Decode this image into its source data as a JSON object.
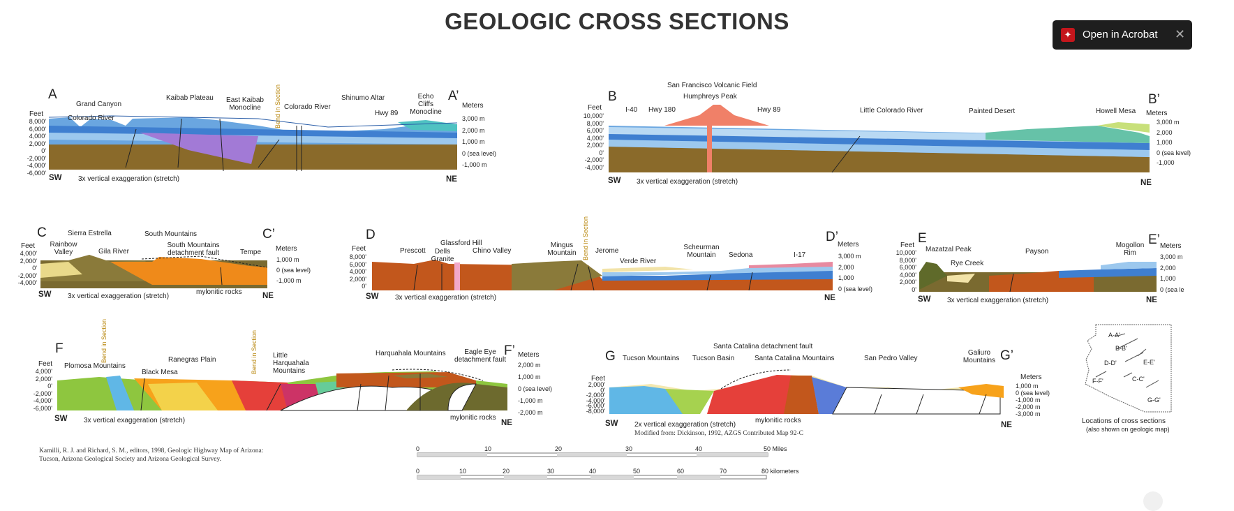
{
  "title": "GEOLOGIC CROSS SECTIONS",
  "acrobat": {
    "label": "Open in Acrobat",
    "icon": "acrobat-icon",
    "close_icon": "close-icon"
  },
  "exaggeration_3x": "3x vertical exaggeration (stretch)",
  "exaggeration_2x": "2x vertical exaggeration (stretch)",
  "bend": "Bend in Section",
  "feet": "Feet",
  "meters": "Meters",
  "sw": "SW",
  "ne": "NE",
  "secA": {
    "start": "A",
    "end": "A’",
    "labels": {
      "colorado_river_1": "Colorado River",
      "grand_canyon": "Grand Canyon",
      "kaibab_plateau": "Kaibab Plateau",
      "east_kaibab": "East Kaibab\nMonocline",
      "colorado_river_2": "Colorado River",
      "shinumo": "Shinumo Altar",
      "hwy89": "Hwy 89",
      "echo_cliffs": "Echo\nCliffs\nMonocline"
    },
    "feet_ticks": [
      "8,000'",
      "6,000'",
      "4,000'",
      "2,000'",
      "0'",
      "-2,000'",
      "-4,000'",
      "-6,000'"
    ],
    "meter_ticks": [
      "3,000 m",
      "2,000 m",
      "1,000 m",
      "0 (sea level)",
      "-1,000 m"
    ]
  },
  "secB": {
    "start": "B",
    "end": "B’",
    "labels": {
      "sfvf": "San Francisco Volcanic Field",
      "humphreys": "Humphreys Peak",
      "i40": "I-40",
      "hwy180": "Hwy 180",
      "hwy89": "Hwy 89",
      "lcr": "Little Colorado River",
      "painted": "Painted Desert",
      "howell": "Howell Mesa"
    },
    "feet_ticks": [
      "10,000'",
      "8,000'",
      "6,000'",
      "4,000'",
      "2,000'",
      "0'",
      "-2,000'",
      "-4,000'"
    ],
    "meter_ticks": [
      "3,000 m",
      "2,000",
      "1,000",
      "0 (sea level)",
      "-1,000"
    ]
  },
  "secC": {
    "start": "C",
    "end": "C’",
    "labels": {
      "sierra": "Sierra Estrella",
      "rainbow": "Rainbow\nValley",
      "gila": "Gila River",
      "south_mtns": "South Mountains",
      "detachment": "South Mountains\ndetachment fault",
      "tempe": "Tempe",
      "mylonitic": "mylonitic rocks"
    },
    "feet_ticks": [
      "4,000'",
      "2,000'",
      "0'",
      "-2,000'",
      "-4,000'"
    ],
    "meter_ticks": [
      "1,000 m",
      "0 (sea level)",
      "-1,000 m"
    ]
  },
  "secD": {
    "start": "D",
    "end": "D’",
    "labels": {
      "glassford": "Glassford Hill",
      "prescott": "Prescott",
      "dells": "Dells\nGranite",
      "chino": "Chino Valley",
      "mingus": "Mingus\nMountain",
      "jerome": "Jerome",
      "verde": "Verde River",
      "scheurman": "Scheurman\nMountain",
      "sedona": "Sedona",
      "i17": "I-17"
    },
    "feet_ticks": [
      "8,000'",
      "6,000'",
      "4,000'",
      "2,000'",
      "0'"
    ],
    "meter_ticks": [
      "3,000 m",
      "2,000",
      "1,000",
      "0 (sea level)"
    ]
  },
  "secE": {
    "start": "E",
    "end": "E’",
    "labels": {
      "mazatzal": "Mazatzal Peak",
      "rye": "Rye Creek",
      "payson": "Payson",
      "mogollon": "Mogollon\nRim"
    },
    "feet_ticks": [
      "10,000'",
      "8,000'",
      "6,000'",
      "4,000'",
      "2,000'",
      "0'"
    ],
    "meter_ticks": [
      "3,000 m",
      "2,000",
      "1,000",
      "0 (sea le"
    ]
  },
  "secF": {
    "start": "F",
    "end": "F’",
    "labels": {
      "plomosa": "Plomosa Mountains",
      "black_mesa": "Black Mesa",
      "ranegras": "Ranegras Plain",
      "little_harq": "Little\nHarquahala\nMountains",
      "harquahala": "Harquahala Mountains",
      "eagle_eye": "Eagle Eye\ndetachment fault",
      "mylonitic": "mylonitic rocks"
    },
    "feet_ticks": [
      "4,000'",
      "2,000'",
      "0'",
      "-2,000'",
      "-4,000'",
      "-6,000'"
    ],
    "meter_ticks": [
      "2,000 m",
      "1,000 m",
      "0 (sea level)",
      "-1,000 m",
      "-2,000 m"
    ]
  },
  "secG": {
    "start": "G",
    "end": "G’",
    "labels": {
      "tucson_mtns": "Tucson Mountains",
      "tucson_basin": "Tucson Basin",
      "catalina_fault": "Santa Catalina detachment fault",
      "catalina_mtns": "Santa Catalina Mountains",
      "san_pedro": "San Pedro Valley",
      "galiuro": "Galiuro\nMountains",
      "mylonitic": "mylonitic rocks"
    },
    "feet_ticks": [
      "2,000'",
      "0'",
      "-2,000'",
      "-4,000'",
      "-6,000'",
      "-8,000'"
    ],
    "meter_ticks": [
      "1,000 m",
      "0 (sea level)",
      "-1,000 m",
      "-2,000 m",
      "-3,000 m"
    ],
    "modified": "Modified from: Dickinson, 1992, AZGS Contributed Map 92-C"
  },
  "citation": "Kamilli, R. J. and Richard, S. M., editors, 1998, Geologic Highway Map of Arizona:\nTucson, Arizona Geological Society and Arizona Geological Survey.",
  "scale_miles": {
    "ticks": [
      "0",
      "10",
      "20",
      "30",
      "40",
      "50 Miles"
    ]
  },
  "scale_km": {
    "ticks": [
      "0",
      "10",
      "20",
      "30",
      "40",
      "50",
      "60",
      "70",
      "80 kilometers"
    ]
  },
  "locations": {
    "items": [
      "A-A'",
      "B-B'",
      "D-D'",
      "E-E'",
      "F-F'",
      "C-C'",
      "G-G'"
    ],
    "caption": "Locations of cross sections",
    "sub": "(also shown on geologic map)"
  }
}
